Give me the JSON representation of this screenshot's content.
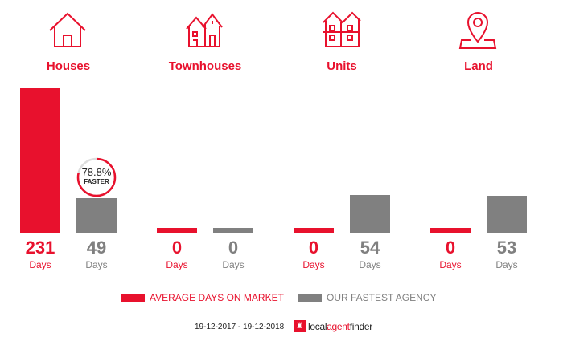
{
  "chart_data": {
    "type": "bar",
    "categories": [
      "Houses",
      "Townhouses",
      "Units",
      "Land"
    ],
    "series": [
      {
        "name": "AVERAGE DAYS ON MARKET",
        "values": [
          231,
          0,
          0,
          0
        ],
        "color": "#e8112d"
      },
      {
        "name": "OUR FASTEST AGENCY",
        "values": [
          49,
          0,
          54,
          53
        ],
        "color": "#808080"
      }
    ],
    "unit_label": "Days",
    "annotation": {
      "category": "Houses",
      "percent": "78.8%",
      "text": "FASTER",
      "fraction": 0.788
    },
    "icons": [
      "house-icon",
      "townhouse-icon",
      "units-icon",
      "land-pin-icon"
    ]
  },
  "footer": {
    "date_range": "19-12-2017 - 19-12-2018",
    "logo_text": "localagentfinder"
  }
}
